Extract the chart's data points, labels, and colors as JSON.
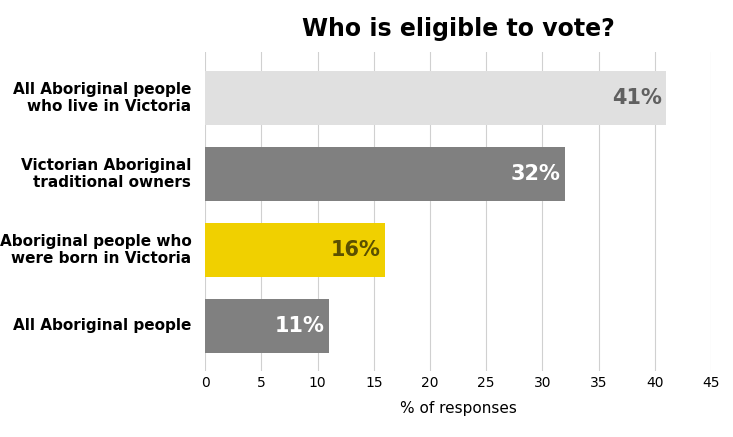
{
  "title": "Who is eligible to vote?",
  "categories": [
    "All Aboriginal people",
    "Aboriginal people who\nwere born in Victoria",
    "Victorian Aboriginal\ntraditional owners",
    "All Aboriginal people\nwho live in Victoria"
  ],
  "values": [
    11,
    16,
    32,
    41
  ],
  "bar_colors": [
    "#808080",
    "#f0d000",
    "#808080",
    "#e0e0e0"
  ],
  "label_colors": [
    "#ffffff",
    "#5a5000",
    "#ffffff",
    "#606060"
  ],
  "xlabel": "% of responses",
  "xlim": [
    0,
    45
  ],
  "xticks": [
    0,
    5,
    10,
    15,
    20,
    25,
    30,
    35,
    40,
    45
  ],
  "background_color": "#ffffff",
  "title_fontsize": 17,
  "label_fontsize": 15,
  "category_fontsize": 11,
  "xlabel_fontsize": 11
}
